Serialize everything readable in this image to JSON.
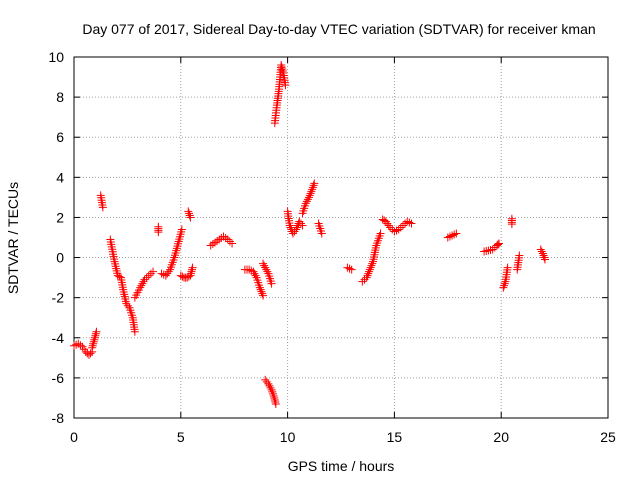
{
  "chart_data": {
    "type": "scatter",
    "title": "Day 077 of 2017, Sidereal Day-to-day VTEC variation (SDTVAR) for receiver kman",
    "xlabel": "GPS time / hours",
    "ylabel": "SDTVAR / TECUs",
    "xlim": [
      0,
      25
    ],
    "ylim": [
      -8,
      10
    ],
    "xticks": [
      0,
      5,
      10,
      15,
      20,
      25
    ],
    "yticks": [
      -8,
      -6,
      -4,
      -2,
      0,
      2,
      4,
      6,
      8,
      10
    ],
    "grid": true,
    "marker": "+",
    "marker_color": "#ff0000",
    "segments": [
      {
        "x": [
          0.0,
          0.2,
          0.4,
          0.55,
          0.7,
          0.85
        ],
        "y": [
          -4.4,
          -4.3,
          -4.45,
          -4.7,
          -4.85,
          -4.7
        ]
      },
      {
        "x": [
          0.85,
          0.95,
          1.05
        ],
        "y": [
          -4.5,
          -4.1,
          -3.7
        ]
      },
      {
        "x": [
          1.25,
          1.35
        ],
        "y": [
          3.1,
          2.5
        ]
      },
      {
        "x": [
          1.7,
          1.9,
          2.05,
          2.2,
          2.3,
          2.45,
          2.6,
          2.75,
          2.85
        ],
        "y": [
          0.9,
          -0.2,
          -0.9,
          -1.0,
          -1.6,
          -2.3,
          -2.5,
          -3.0,
          -3.7
        ]
      },
      {
        "x": [
          2.85,
          3.1,
          3.3,
          3.5,
          3.7
        ],
        "y": [
          -2.0,
          -1.5,
          -1.1,
          -0.9,
          -0.7
        ]
      },
      {
        "x": [
          3.95
        ],
        "y": [
          1.4
        ]
      },
      {
        "x": [
          4.1,
          4.3,
          4.5,
          4.7,
          4.9,
          5.05
        ],
        "y": [
          -0.8,
          -0.9,
          -0.6,
          0.0,
          0.8,
          1.4
        ]
      },
      {
        "x": [
          5.0,
          5.15,
          5.3,
          5.45,
          5.55
        ],
        "y": [
          -0.9,
          -1.0,
          -1.0,
          -0.9,
          -0.5
        ]
      },
      {
        "x": [
          5.35,
          5.45
        ],
        "y": [
          2.3,
          2.0
        ]
      },
      {
        "x": [
          6.4,
          6.6,
          6.8,
          7.0,
          7.2,
          7.4
        ],
        "y": [
          0.6,
          0.75,
          0.9,
          1.05,
          0.9,
          0.7
        ]
      },
      {
        "x": [
          8.0,
          8.2,
          8.4,
          8.55,
          8.7,
          8.85
        ],
        "y": [
          -0.6,
          -0.6,
          -0.7,
          -1.0,
          -1.5,
          -1.9
        ]
      },
      {
        "x": [
          8.85,
          8.95,
          9.1,
          9.25
        ],
        "y": [
          -0.3,
          -0.5,
          -0.8,
          -1.3
        ]
      },
      {
        "x": [
          8.95,
          9.1,
          9.25,
          9.35,
          9.45
        ],
        "y": [
          -6.1,
          -6.3,
          -6.6,
          -6.9,
          -7.3
        ]
      },
      {
        "x": [
          9.4,
          9.5,
          9.6,
          9.7,
          9.8,
          9.9
        ],
        "y": [
          6.7,
          7.6,
          8.4,
          9.6,
          9.2,
          8.6
        ]
      },
      {
        "x": [
          10.0,
          10.1,
          10.25,
          10.4,
          10.55,
          10.7
        ],
        "y": [
          2.3,
          1.6,
          1.2,
          1.4,
          1.8,
          1.6
        ]
      },
      {
        "x": [
          10.7,
          10.85,
          11.0,
          11.15,
          11.25
        ],
        "y": [
          2.2,
          2.7,
          3.0,
          3.4,
          3.7
        ]
      },
      {
        "x": [
          11.45,
          11.6
        ],
        "y": [
          1.7,
          1.2
        ]
      },
      {
        "x": [
          12.8,
          13.0
        ],
        "y": [
          -0.5,
          -0.6
        ]
      },
      {
        "x": [
          13.5,
          13.7,
          13.85,
          14.0,
          14.15,
          14.35
        ],
        "y": [
          -1.2,
          -1.0,
          -0.6,
          -0.2,
          0.6,
          1.2
        ]
      },
      {
        "x": [
          14.45,
          14.6,
          14.8,
          15.0,
          15.2,
          15.4,
          15.6,
          15.8
        ],
        "y": [
          1.9,
          1.8,
          1.5,
          1.3,
          1.4,
          1.6,
          1.8,
          1.7
        ]
      },
      {
        "x": [
          17.5,
          17.7,
          17.9
        ],
        "y": [
          1.0,
          1.1,
          1.2
        ]
      },
      {
        "x": [
          19.2,
          19.4,
          19.6,
          19.8,
          19.9
        ],
        "y": [
          0.3,
          0.35,
          0.4,
          0.6,
          0.7
        ]
      },
      {
        "x": [
          20.1,
          20.2,
          20.3
        ],
        "y": [
          -1.5,
          -1.2,
          -0.5
        ]
      },
      {
        "x": [
          20.5
        ],
        "y": [
          1.8
        ]
      },
      {
        "x": [
          20.75,
          20.85
        ],
        "y": [
          -0.6,
          0.1
        ]
      },
      {
        "x": [
          21.85,
          21.95,
          22.05
        ],
        "y": [
          0.4,
          0.2,
          -0.1
        ]
      }
    ]
  }
}
